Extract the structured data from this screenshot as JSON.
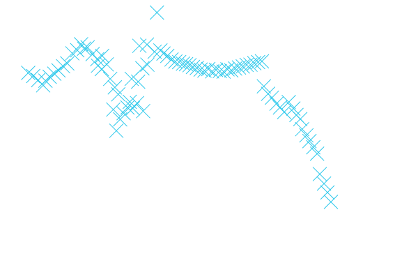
{
  "chart_data": {
    "type": "scatter",
    "title": "",
    "xlabel": "",
    "ylabel": "",
    "axes_visible": false,
    "grid": false,
    "marker": "x",
    "color": "#2ec9ec",
    "xlim": [
      0,
      100
    ],
    "ylim": [
      0,
      100
    ],
    "points": [
      {
        "x": 1.0,
        "y": 75.8
      },
      {
        "x": 2.3,
        "y": 74.6
      },
      {
        "x": 3.6,
        "y": 73.0
      },
      {
        "x": 4.9,
        "y": 71.0
      },
      {
        "x": 5.5,
        "y": 72.8
      },
      {
        "x": 6.6,
        "y": 74.3
      },
      {
        "x": 7.8,
        "y": 75.5
      },
      {
        "x": 8.9,
        "y": 76.8
      },
      {
        "x": 10.1,
        "y": 78.4
      },
      {
        "x": 11.2,
        "y": 79.5
      },
      {
        "x": 12.5,
        "y": 83.4
      },
      {
        "x": 13.8,
        "y": 84.6
      },
      {
        "x": 14.8,
        "y": 86.9
      },
      {
        "x": 15.6,
        "y": 85.2
      },
      {
        "x": 16.5,
        "y": 85.7
      },
      {
        "x": 17.8,
        "y": 83.1
      },
      {
        "x": 19.0,
        "y": 81.1
      },
      {
        "x": 20.3,
        "y": 82.4
      },
      {
        "x": 19.2,
        "y": 78.6
      },
      {
        "x": 20.2,
        "y": 77.3
      },
      {
        "x": 21.5,
        "y": 79.1
      },
      {
        "x": 22.4,
        "y": 73.5
      },
      {
        "x": 23.6,
        "y": 70.2
      },
      {
        "x": 24.5,
        "y": 67.5
      },
      {
        "x": 23.2,
        "y": 61.6
      },
      {
        "x": 25.0,
        "y": 57.8
      },
      {
        "x": 24.0,
        "y": 53.4
      },
      {
        "x": 25.9,
        "y": 60.2
      },
      {
        "x": 26.9,
        "y": 62.4
      },
      {
        "x": 27.5,
        "y": 64.6
      },
      {
        "x": 28.3,
        "y": 62.1
      },
      {
        "x": 29.4,
        "y": 64.1
      },
      {
        "x": 31.0,
        "y": 61.0
      },
      {
        "x": 28.0,
        "y": 73.5
      },
      {
        "x": 29.7,
        "y": 72.4
      },
      {
        "x": 30.8,
        "y": 77.6
      },
      {
        "x": 32.1,
        "y": 79.0
      },
      {
        "x": 30.0,
        "y": 86.3
      },
      {
        "x": 32.0,
        "y": 86.8
      },
      {
        "x": 34.0,
        "y": 84.0
      },
      {
        "x": 34.6,
        "y": 99.2
      },
      {
        "x": 35.5,
        "y": 84.5
      },
      {
        "x": 36.3,
        "y": 83.3
      },
      {
        "x": 37.3,
        "y": 82.4
      },
      {
        "x": 38.4,
        "y": 81.0
      },
      {
        "x": 39.4,
        "y": 80.2
      },
      {
        "x": 40.4,
        "y": 80.0
      },
      {
        "x": 41.4,
        "y": 79.4
      },
      {
        "x": 42.2,
        "y": 79.2
      },
      {
        "x": 43.1,
        "y": 78.8
      },
      {
        "x": 44.0,
        "y": 78.1
      },
      {
        "x": 45.0,
        "y": 77.7
      },
      {
        "x": 46.0,
        "y": 77.1
      },
      {
        "x": 47.0,
        "y": 76.7
      },
      {
        "x": 48.0,
        "y": 77.3
      },
      {
        "x": 49.0,
        "y": 76.4
      },
      {
        "x": 50.0,
        "y": 77.0
      },
      {
        "x": 51.0,
        "y": 76.5
      },
      {
        "x": 52.0,
        "y": 76.3
      },
      {
        "x": 53.0,
        "y": 77.2
      },
      {
        "x": 54.0,
        "y": 76.8
      },
      {
        "x": 55.0,
        "y": 77.5
      },
      {
        "x": 56.0,
        "y": 77.9
      },
      {
        "x": 57.0,
        "y": 78.3
      },
      {
        "x": 58.0,
        "y": 78.9
      },
      {
        "x": 59.0,
        "y": 79.0
      },
      {
        "x": 60.0,
        "y": 79.6
      },
      {
        "x": 61.0,
        "y": 80.0
      },
      {
        "x": 62.0,
        "y": 80.3
      },
      {
        "x": 62.5,
        "y": 70.6
      },
      {
        "x": 63.6,
        "y": 67.7
      },
      {
        "x": 64.6,
        "y": 66.2
      },
      {
        "x": 65.8,
        "y": 63.9
      },
      {
        "x": 66.7,
        "y": 62.4
      },
      {
        "x": 67.8,
        "y": 60.6
      },
      {
        "x": 69.0,
        "y": 64.5
      },
      {
        "x": 70.2,
        "y": 62.0
      },
      {
        "x": 71.0,
        "y": 59.5
      },
      {
        "x": 72.0,
        "y": 57.9
      },
      {
        "x": 72.5,
        "y": 54.0
      },
      {
        "x": 73.6,
        "y": 51.6
      },
      {
        "x": 74.4,
        "y": 49.4
      },
      {
        "x": 75.4,
        "y": 47.0
      },
      {
        "x": 76.4,
        "y": 44.5
      },
      {
        "x": 77.1,
        "y": 36.6
      },
      {
        "x": 78.2,
        "y": 32.9
      },
      {
        "x": 79.1,
        "y": 29.5
      },
      {
        "x": 80.0,
        "y": 25.8
      }
    ]
  }
}
